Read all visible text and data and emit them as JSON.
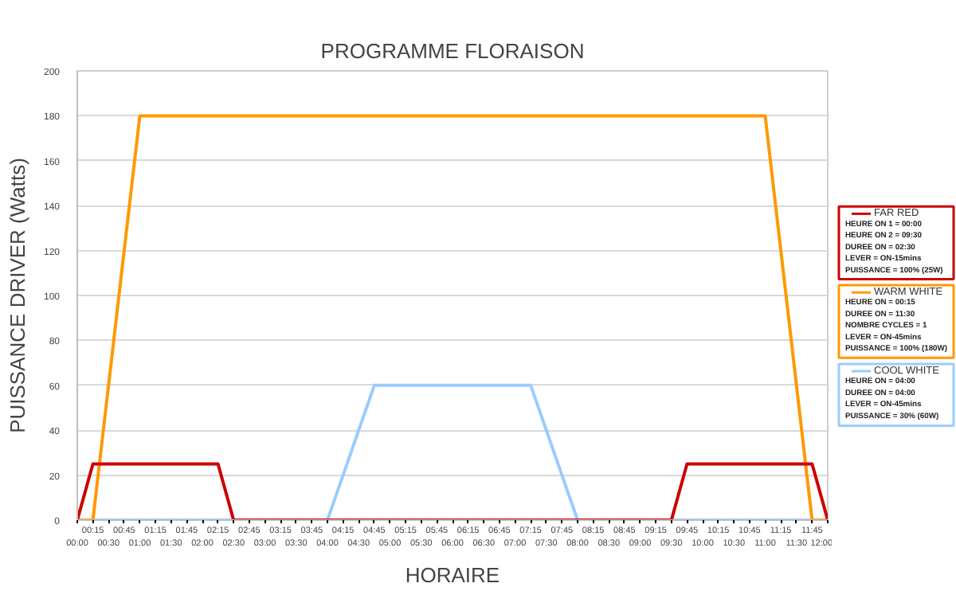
{
  "chart_data": {
    "type": "line",
    "title": "PROGRAMME FLORAISON",
    "xlabel": "HORAIRE",
    "ylabel": "PUISSANCE DRIVER (Watts)",
    "categories": [
      "00:00",
      "00:15",
      "00:30",
      "00:45",
      "01:00",
      "01:15",
      "01:30",
      "01:45",
      "02:00",
      "02:15",
      "02:30",
      "02:45",
      "03:00",
      "03:15",
      "03:30",
      "03:45",
      "04:00",
      "04:15",
      "04:30",
      "04:45",
      "05:00",
      "05:15",
      "05:30",
      "05:45",
      "06:00",
      "06:15",
      "06:30",
      "06:45",
      "07:00",
      "07:15",
      "07:30",
      "07:45",
      "08:00",
      "08:15",
      "08:30",
      "08:45",
      "09:00",
      "09:15",
      "09:30",
      "09:45",
      "10:00",
      "10:15",
      "10:30",
      "10:45",
      "11:00",
      "11:15",
      "11:30",
      "11:45",
      "12:00"
    ],
    "series": [
      {
        "name": "COOL WHITE",
        "color": "#99ccff",
        "values": [
          0,
          0,
          0,
          0,
          0,
          0,
          0,
          0,
          0,
          0,
          0,
          0,
          0,
          0,
          0,
          0,
          0,
          20,
          40,
          60,
          60,
          60,
          60,
          60,
          60,
          60,
          60,
          60,
          60,
          60,
          40,
          20,
          0,
          0,
          0,
          0,
          0,
          0,
          0,
          0,
          0,
          0,
          0,
          0,
          0,
          0,
          0,
          0,
          0
        ]
      },
      {
        "name": "WARM WHITE",
        "color": "#ff9900",
        "values": [
          0,
          0,
          60,
          120,
          180,
          180,
          180,
          180,
          180,
          180,
          180,
          180,
          180,
          180,
          180,
          180,
          180,
          180,
          180,
          180,
          180,
          180,
          180,
          180,
          180,
          180,
          180,
          180,
          180,
          180,
          180,
          180,
          180,
          180,
          180,
          180,
          180,
          180,
          180,
          180,
          180,
          180,
          180,
          180,
          180,
          120,
          60,
          0,
          0
        ]
      },
      {
        "name": "FAR RED",
        "color": "#cc0000",
        "values": [
          0,
          25,
          25,
          25,
          25,
          25,
          25,
          25,
          25,
          25,
          0,
          0,
          0,
          0,
          0,
          0,
          0,
          0,
          0,
          0,
          0,
          0,
          0,
          0,
          0,
          0,
          0,
          0,
          0,
          0,
          0,
          0,
          0,
          0,
          0,
          0,
          0,
          0,
          0,
          25,
          25,
          25,
          25,
          25,
          25,
          25,
          25,
          25,
          0
        ]
      }
    ],
    "annotations": [
      "HEURE ON = 04:00\nDUREE ON = 04:00\nLEVER = ON-45mins\nPUISSANCE = 30% (60W)",
      "HEURE ON = 00:15\nDUREE ON = 11:30\nNOMBRE CYCLES = 1\nLEVER = ON-45mins\nPUISSANCE = 100% (180W)",
      "HEURE ON 1 = 00:00\nHEURE ON 2 = 09:30\nDUREE ON = 02:30\nLEVER = ON-15mins\nPUISSANCE = 100% (25W)"
    ],
    "ylim": [
      0,
      200
    ],
    "yticks": [
      0,
      20,
      40,
      60,
      80,
      100,
      120,
      140,
      160,
      180,
      200
    ],
    "grid": "y",
    "legend": "right",
    "marker": "none",
    "line_style": "solid"
  }
}
